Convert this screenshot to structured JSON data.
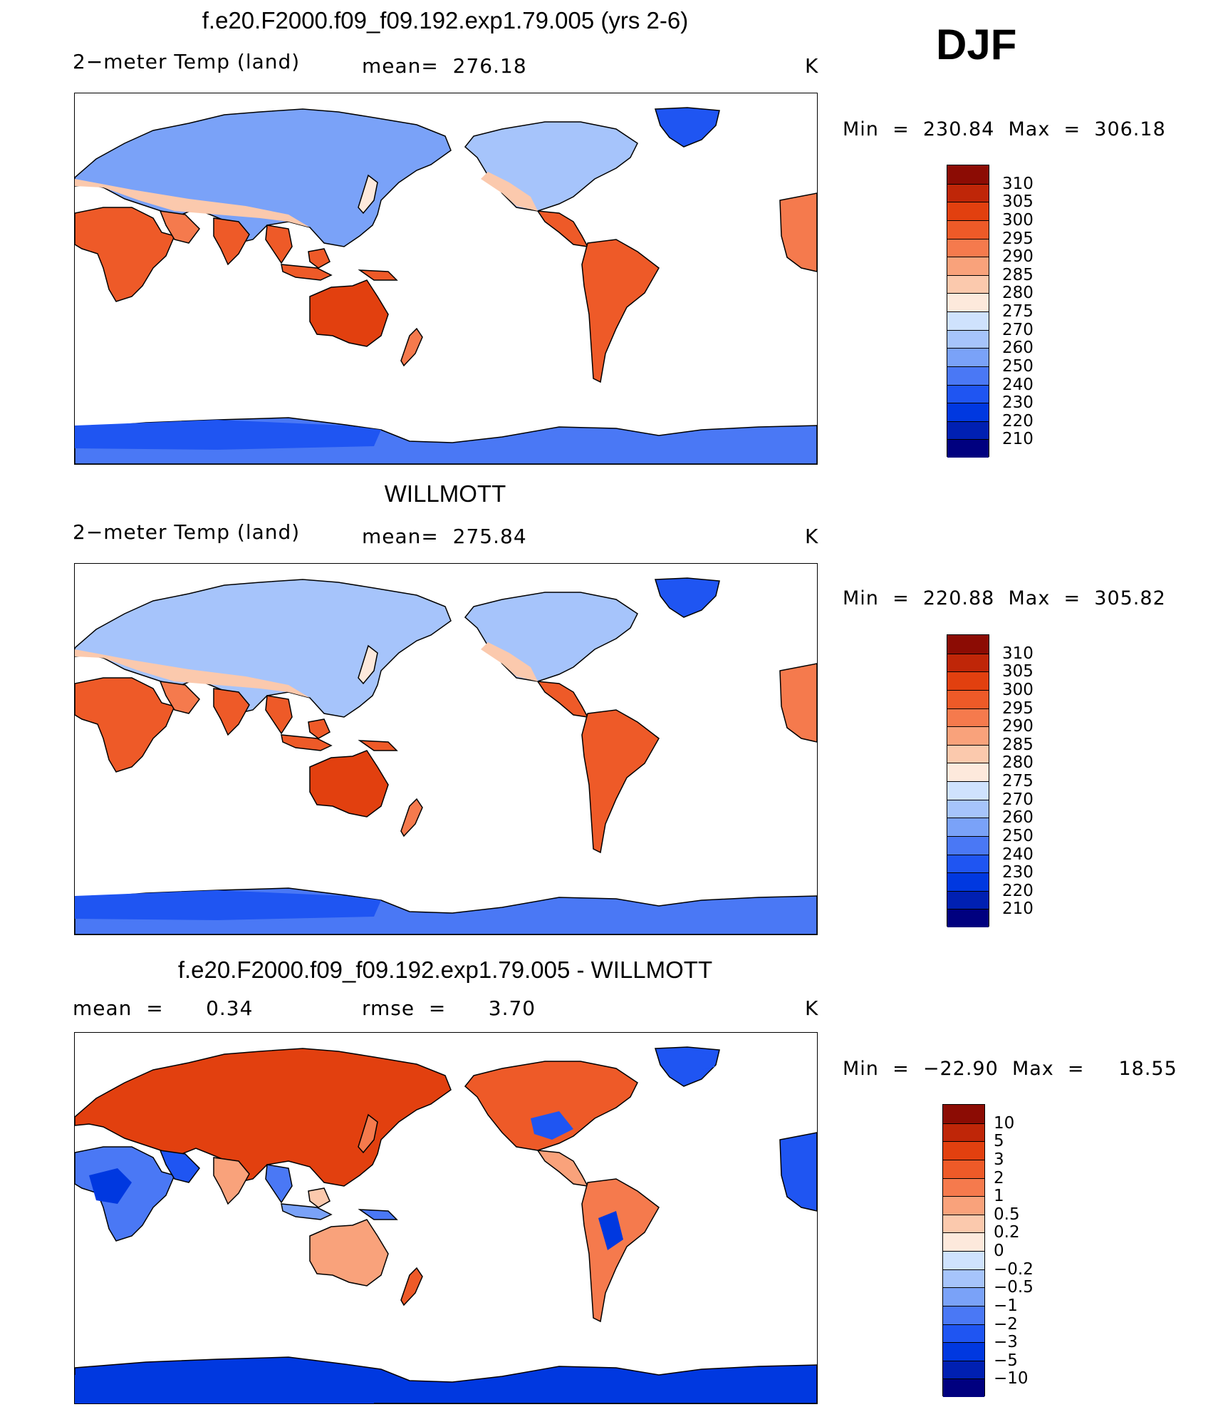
{
  "season": "DJF",
  "colors": {
    "abs_scale": [
      "#00007f",
      "#0020b2",
      "#0038e0",
      "#1f55f2",
      "#4a78f5",
      "#7aa2f8",
      "#a6c4fb",
      "#cfe2fd",
      "#fde9dc",
      "#fbc9ad",
      "#f9a27b",
      "#f57a4d",
      "#ee5a28",
      "#e2400f",
      "#bf2608",
      "#8c0c04"
    ],
    "diff_scale": [
      "#00007f",
      "#0020b2",
      "#0038e0",
      "#1f55f2",
      "#4a78f5",
      "#7aa2f8",
      "#a6c4fb",
      "#cfe2fd",
      "#fde9dc",
      "#fbc9ad",
      "#f9a27b",
      "#f57a4d",
      "#ee5a28",
      "#e2400f",
      "#bf2608",
      "#8c0c04"
    ]
  },
  "panels": [
    {
      "title": "f.e20.F2000.f09_f09.192.exp1.79.005 (yrs 2-6)",
      "left_label": "2−meter Temp (land)",
      "center_label": "mean=  276.18",
      "units": "K",
      "minmax": "Min  =  230.84  Max  =  306.18",
      "scale": "abs",
      "colorbar_labels": [
        "310",
        "305",
        "300",
        "295",
        "290",
        "285",
        "280",
        "275",
        "270",
        "260",
        "250",
        "240",
        "230",
        "220",
        "210"
      ]
    },
    {
      "title": "WILLMOTT",
      "left_label": "2−meter Temp (land)",
      "center_label": "mean=  275.84",
      "units": "K",
      "minmax": "Min  =  220.88  Max  =  305.82",
      "scale": "abs",
      "colorbar_labels": [
        "310",
        "305",
        "300",
        "295",
        "290",
        "285",
        "280",
        "275",
        "270",
        "260",
        "250",
        "240",
        "230",
        "220",
        "210"
      ]
    },
    {
      "title": "f.e20.F2000.f09_f09.192.exp1.79.005 - WILLMOTT",
      "left_label": "mean  =      0.34",
      "center_label": "rmse  =      3.70",
      "units": "K",
      "minmax": "Min  =  −22.90  Max  =     18.55",
      "scale": "diff",
      "colorbar_labels": [
        "10",
        "5",
        "3",
        "2",
        "1",
        "0.5",
        "0.2",
        "0",
        "−0.2",
        "−0.5",
        "−1",
        "−2",
        "−3",
        "−5",
        "−10"
      ]
    }
  ]
}
